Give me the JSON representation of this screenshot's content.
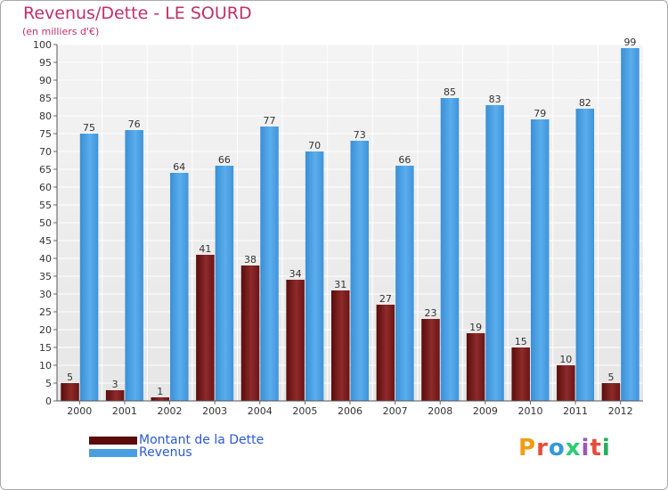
{
  "title": "Revenus/Dette - LE SOURD",
  "subtitle": "(en milliers d'€)",
  "brand": {
    "text": "Proxiti",
    "colors": [
      "#f39c12",
      "#e74c3c",
      "#3498db",
      "#2ecc71",
      "#9b59b6",
      "#e74c3c",
      "#27ae60"
    ]
  },
  "colors": {
    "dette": "#7a1a1a",
    "revenus": "#4a9fe0",
    "title": "#c0306a",
    "legend_text": "#2b5ad6"
  },
  "legend": [
    {
      "label": "Montant de la Dette",
      "color": "#5a0a0a"
    },
    {
      "label": "Revenus",
      "color": "#4a9fe0"
    }
  ],
  "chart_data": {
    "type": "bar",
    "categories": [
      "2000",
      "2001",
      "2002",
      "2003",
      "2004",
      "2005",
      "2006",
      "2007",
      "2008",
      "2009",
      "2010",
      "2011",
      "2012"
    ],
    "series": [
      {
        "name": "Montant de la Dette",
        "values": [
          5,
          3,
          1,
          41,
          38,
          34,
          31,
          27,
          23,
          19,
          15,
          10,
          5
        ]
      },
      {
        "name": "Revenus",
        "values": [
          75,
          76,
          64,
          66,
          77,
          70,
          73,
          66,
          85,
          83,
          79,
          82,
          99
        ]
      }
    ],
    "ylim": [
      0,
      100
    ],
    "yticks": [
      0,
      5,
      10,
      15,
      20,
      25,
      30,
      35,
      40,
      45,
      50,
      55,
      60,
      65,
      70,
      75,
      80,
      85,
      90,
      95,
      100
    ],
    "grid": true,
    "data_labels": true,
    "legend_position": "bottom-left"
  }
}
